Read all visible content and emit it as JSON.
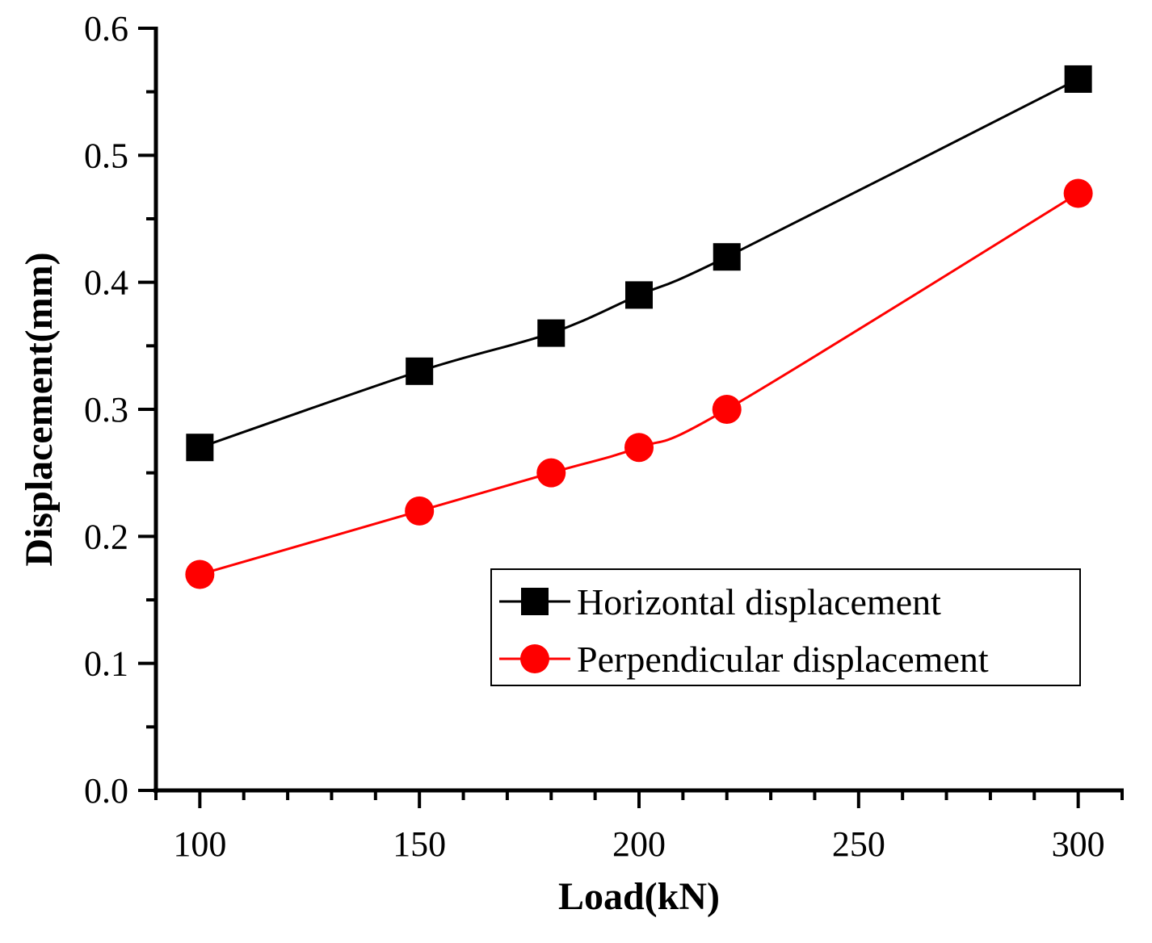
{
  "chart_data": {
    "type": "line",
    "title": "",
    "xlabel": "Load(kN)",
    "ylabel": "Displacement(mm)",
    "xlim": [
      90,
      310
    ],
    "ylim": [
      0.0,
      0.6
    ],
    "xticks": [
      100,
      150,
      200,
      250,
      300
    ],
    "yticks": [
      0.0,
      0.1,
      0.2,
      0.3,
      0.4,
      0.5,
      0.6
    ],
    "xtick_labels": [
      "100",
      "150",
      "200",
      "250",
      "300"
    ],
    "ytick_labels": [
      "0.0",
      "0.1",
      "0.2",
      "0.3",
      "0.4",
      "0.5",
      "0.6"
    ],
    "grid": false,
    "legend_position": "center-right",
    "series": [
      {
        "name": "Horizontal displacement",
        "color": "#000000",
        "marker": "square",
        "x": [
          100,
          150,
          180,
          200,
          220,
          300
        ],
        "values": [
          0.27,
          0.33,
          0.36,
          0.39,
          0.42,
          0.56
        ]
      },
      {
        "name": "Perpendicular displacement",
        "color": "#ff0000",
        "marker": "circle",
        "x": [
          100,
          150,
          180,
          200,
          220,
          300
        ],
        "values": [
          0.17,
          0.22,
          0.25,
          0.27,
          0.3,
          0.47
        ]
      }
    ]
  }
}
